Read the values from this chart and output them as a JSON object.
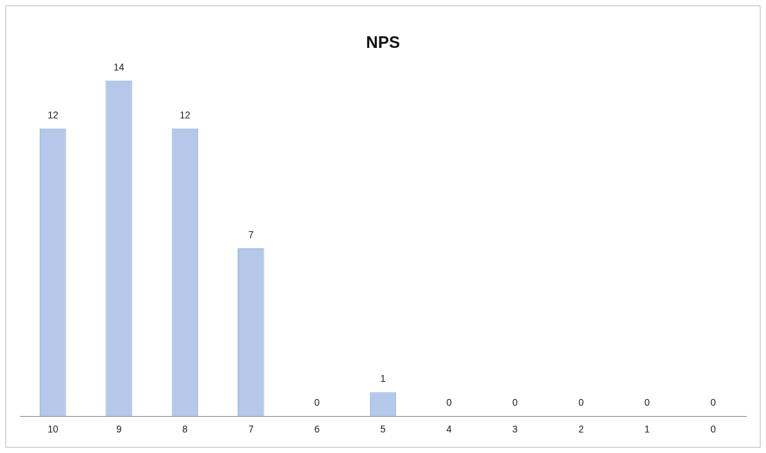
{
  "chart_data": {
    "type": "bar",
    "title": "NPS",
    "categories": [
      "10",
      "9",
      "8",
      "7",
      "6",
      "5",
      "4",
      "3",
      "2",
      "1",
      "0"
    ],
    "values": [
      12,
      14,
      12,
      7,
      0,
      1,
      0,
      0,
      0,
      0,
      0
    ],
    "color": "#b4c9ea",
    "data_labels": true,
    "grid": false,
    "legend": false
  }
}
